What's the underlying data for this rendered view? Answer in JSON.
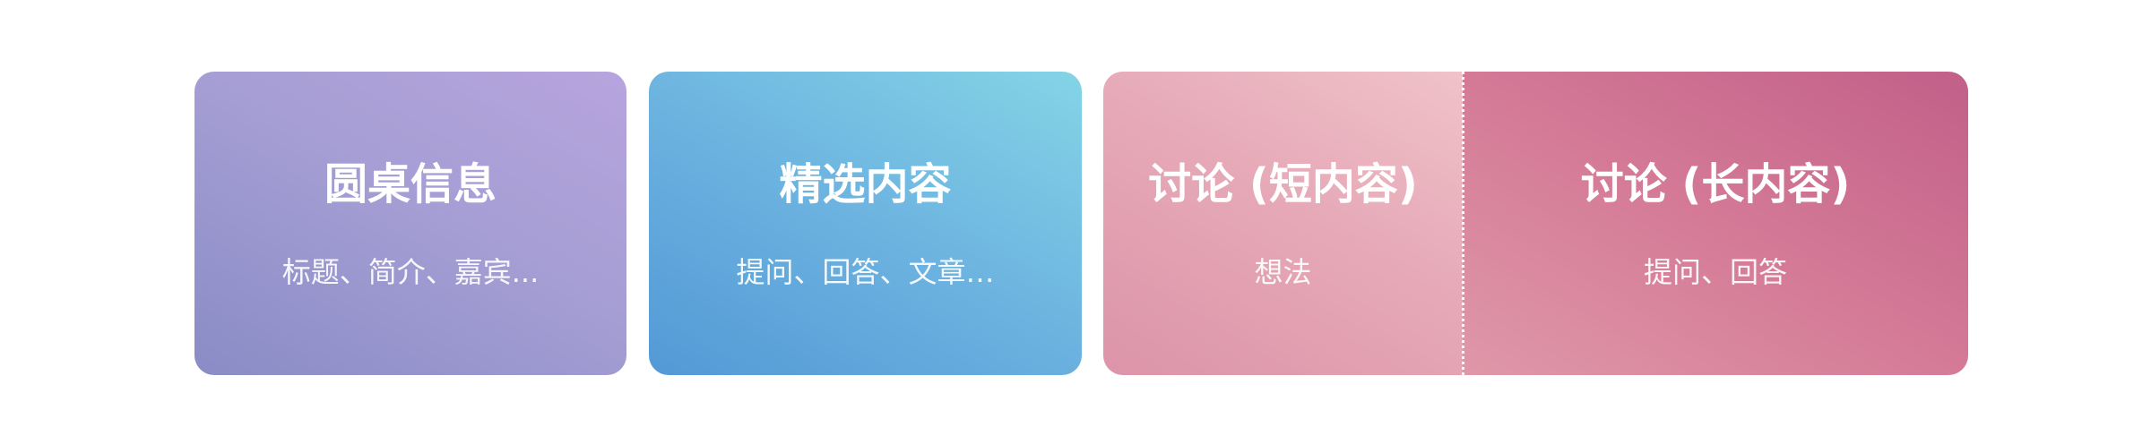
{
  "cards": [
    {
      "title": "圆桌信息",
      "subtitle": "标题、简介、嘉宾..."
    },
    {
      "title": "精选内容",
      "subtitle": "提问、回答、文章…"
    },
    {
      "title": "讨论 (短内容)",
      "subtitle": "想法"
    },
    {
      "title": "讨论 (长内容)",
      "subtitle": "提问、回答"
    }
  ],
  "colors": {
    "roundtable": [
      "#8a8cc6",
      "#b7a4de"
    ],
    "featured": [
      "#5399d6",
      "#84d4e6"
    ],
    "discussion_short": [
      "#dc94a9",
      "#f0c2c9"
    ],
    "discussion_long": [
      "#df98a8",
      "#c16088"
    ],
    "text": "#ffffff"
  }
}
